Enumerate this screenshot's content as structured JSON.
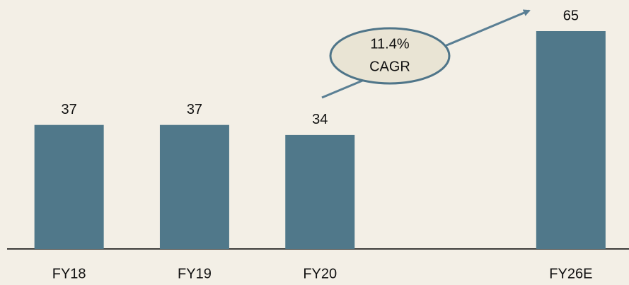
{
  "chart_data": {
    "type": "bar",
    "categories": [
      "FY18",
      "FY19",
      "FY20",
      null,
      "FY26E"
    ],
    "values": [
      37,
      37,
      34,
      null,
      65
    ],
    "color": "#50788a",
    "annotation": [
      "11.4%",
      "CAGR"
    ]
  }
}
